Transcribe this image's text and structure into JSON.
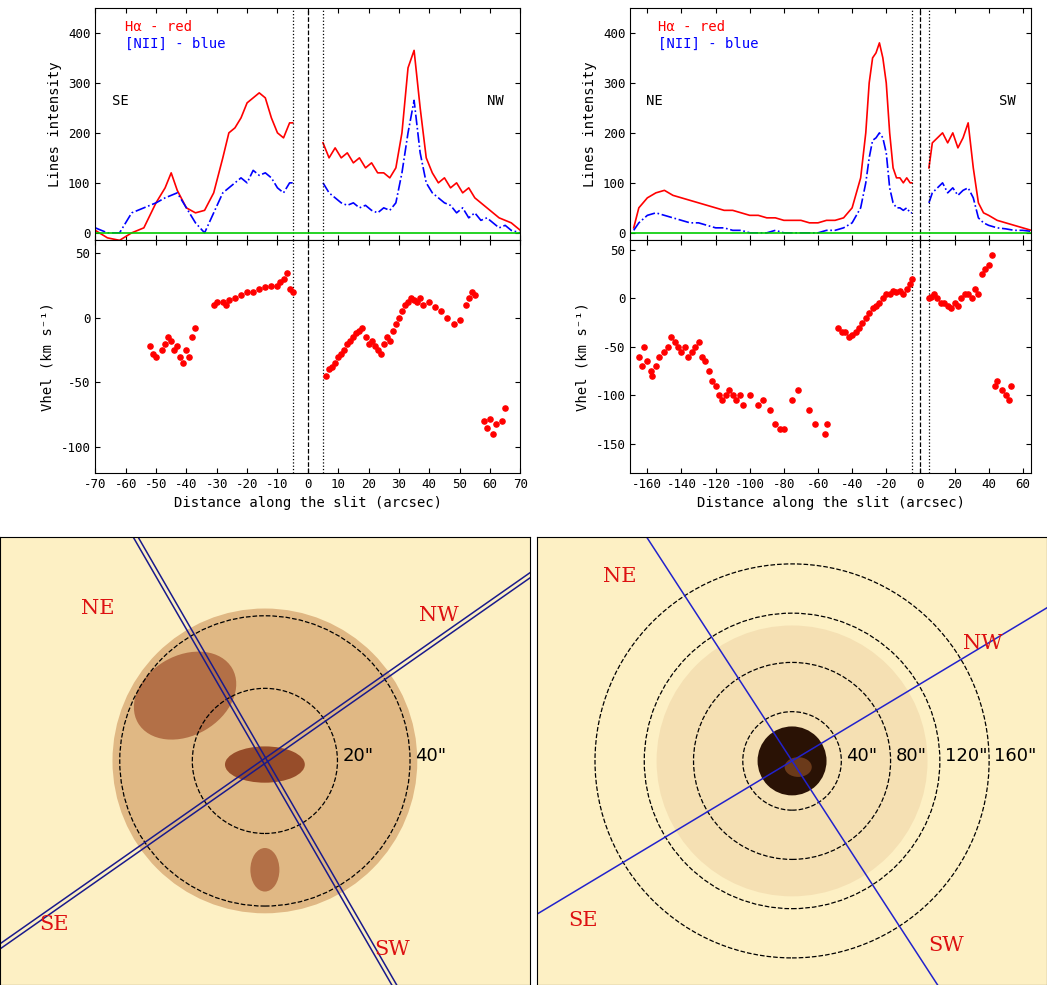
{
  "chart_data": [
    {
      "type": "line",
      "y_label": "Lines intensity",
      "tick_labels": "y",
      "xlim": [
        -70,
        70
      ],
      "ylim": [
        -15,
        450
      ],
      "xticks": [
        -70,
        -60,
        -50,
        -40,
        -30,
        -20,
        -10,
        0,
        10,
        20,
        30,
        40,
        50,
        60,
        70
      ],
      "yticks": [
        0,
        100,
        200,
        300,
        400
      ],
      "annotations": [
        "SE",
        "NW"
      ],
      "vlines": [
        {
          "x": -5,
          "line_style": "dotted"
        },
        {
          "x": 0,
          "line_style": "dashed"
        },
        {
          "x": 5,
          "line_style": "dotted"
        }
      ],
      "hlines": [
        {
          "y": 0,
          "color": "#00cc00"
        }
      ],
      "x": [
        -70,
        -66,
        -62,
        -58,
        -54,
        -50,
        -47,
        -45,
        -43,
        -40,
        -37,
        -34,
        -31,
        -28,
        -26,
        -24,
        -22,
        -20,
        -18,
        -16,
        -14,
        -12,
        -10,
        -8,
        -6,
        -5,
        0,
        5,
        7,
        9,
        11,
        13,
        15,
        17,
        19,
        21,
        23,
        25,
        27,
        29,
        31,
        33,
        35,
        37,
        39,
        41,
        43,
        45,
        47,
        49,
        51,
        53,
        55,
        57,
        59,
        61,
        63,
        65,
        67,
        70
      ],
      "series": [
        {
          "name": "Hα - red",
          "color": "#ff0000",
          "line_style": "solid",
          "values": [
            5,
            -10,
            -15,
            0,
            10,
            60,
            90,
            120,
            85,
            50,
            40,
            45,
            80,
            150,
            200,
            210,
            230,
            260,
            270,
            280,
            270,
            230,
            200,
            190,
            220,
            220,
            null,
            180,
            150,
            170,
            150,
            160,
            140,
            150,
            130,
            140,
            120,
            120,
            110,
            130,
            200,
            330,
            365,
            250,
            150,
            120,
            100,
            110,
            90,
            100,
            80,
            90,
            70,
            60,
            50,
            40,
            30,
            25,
            20,
            5
          ]
        },
        {
          "name": "[NII] - blue",
          "color": "#0000ff",
          "line_style": "dashdot",
          "values": [
            10,
            0,
            0,
            40,
            50,
            60,
            70,
            75,
            80,
            50,
            20,
            0,
            40,
            80,
            90,
            100,
            110,
            100,
            125,
            115,
            120,
            110,
            90,
            80,
            100,
            100,
            null,
            100,
            80,
            70,
            60,
            55,
            60,
            50,
            55,
            45,
            40,
            50,
            45,
            60,
            120,
            200,
            265,
            160,
            100,
            80,
            70,
            60,
            55,
            40,
            50,
            30,
            40,
            25,
            30,
            20,
            10,
            15,
            5,
            0
          ]
        }
      ]
    },
    {
      "type": "scatter",
      "y_label": "Vhel (km s⁻¹)",
      "x_label": "Distance along the slit (arcsec)",
      "xlim": [
        -70,
        70
      ],
      "ylim": [
        -120,
        60
      ],
      "xticks": [
        -70,
        -60,
        -50,
        -40,
        -30,
        -20,
        -10,
        0,
        10,
        20,
        30,
        40,
        50,
        60,
        70
      ],
      "yticks": [
        -100,
        -50,
        0,
        50
      ],
      "vlines": [
        {
          "x": -5,
          "line_style": "dotted"
        },
        {
          "x": 0,
          "line_style": "dashed"
        },
        {
          "x": 5,
          "line_style": "dotted"
        }
      ],
      "x": [
        -52,
        -51,
        -50,
        -48,
        -47,
        -46,
        -45,
        -44,
        -43,
        -42,
        -41,
        -40,
        -39,
        -38,
        -37,
        -31,
        -30,
        -28,
        -27,
        -26,
        -24,
        -22,
        -20,
        -18,
        -16,
        -14,
        -12,
        -10,
        -9,
        -8,
        -7,
        -6,
        -5,
        6,
        7,
        8,
        9,
        10,
        11,
        12,
        13,
        14,
        15,
        16,
        17,
        18,
        19,
        20,
        21,
        22,
        23,
        24,
        25,
        26,
        27,
        28,
        29,
        30,
        31,
        32,
        33,
        34,
        35,
        36,
        37,
        38,
        40,
        42,
        44,
        46,
        48,
        50,
        52,
        53,
        54,
        55,
        58,
        59,
        60,
        61,
        62,
        64,
        65
      ],
      "series": [
        {
          "name": "Vhel",
          "color": "#ff0000",
          "marker": "circle",
          "values": [
            -22,
            -28,
            -30,
            -25,
            -20,
            -15,
            -18,
            -25,
            -22,
            -30,
            -35,
            -25,
            -30,
            -15,
            -8,
            10,
            12,
            12,
            10,
            14,
            15,
            18,
            20,
            20,
            22,
            24,
            25,
            25,
            28,
            30,
            35,
            22,
            20,
            -45,
            -40,
            -38,
            -35,
            -30,
            -28,
            -25,
            -20,
            -18,
            -15,
            -12,
            -10,
            -8,
            -15,
            -20,
            -18,
            -22,
            -25,
            -28,
            -20,
            -15,
            -18,
            -10,
            -5,
            0,
            5,
            10,
            12,
            15,
            14,
            12,
            15,
            10,
            12,
            8,
            5,
            0,
            -5,
            -2,
            10,
            15,
            20,
            18,
            -80,
            -85,
            -78,
            -90,
            -82,
            -80,
            -70
          ]
        }
      ]
    },
    {
      "type": "line",
      "y_label": "Lines intensity",
      "tick_labels": "y",
      "xlim": [
        -170,
        65
      ],
      "ylim": [
        -15,
        450
      ],
      "xticks": [
        -160,
        -140,
        -120,
        -100,
        -80,
        -60,
        -40,
        -20,
        0,
        20,
        40,
        60
      ],
      "yticks": [
        0,
        100,
        200,
        300,
        400
      ],
      "annotations": [
        "NE",
        "SW"
      ],
      "vlines": [
        {
          "x": -5,
          "line_style": "dotted"
        },
        {
          "x": 0,
          "line_style": "dashed"
        },
        {
          "x": 5,
          "line_style": "dotted"
        }
      ],
      "hlines": [
        {
          "y": 0,
          "color": "#00cc00"
        }
      ],
      "x": [
        -168,
        -165,
        -160,
        -155,
        -150,
        -145,
        -140,
        -135,
        -130,
        -125,
        -120,
        -115,
        -110,
        -105,
        -100,
        -95,
        -90,
        -85,
        -80,
        -75,
        -70,
        -65,
        -60,
        -55,
        -50,
        -45,
        -40,
        -35,
        -32,
        -30,
        -28,
        -26,
        -24,
        -22,
        -20,
        -18,
        -16,
        -14,
        -12,
        -10,
        -8,
        -6,
        -5,
        0,
        5,
        7,
        10,
        13,
        16,
        19,
        22,
        25,
        28,
        31,
        34,
        37,
        40,
        45,
        50,
        55,
        60,
        65
      ],
      "series": [
        {
          "name": "Hα - red",
          "color": "#ff0000",
          "line_style": "solid",
          "values": [
            10,
            50,
            70,
            80,
            85,
            75,
            70,
            65,
            60,
            55,
            50,
            45,
            45,
            40,
            35,
            35,
            30,
            30,
            25,
            25,
            25,
            20,
            20,
            25,
            25,
            30,
            50,
            110,
            200,
            300,
            350,
            360,
            380,
            350,
            300,
            200,
            130,
            110,
            110,
            100,
            110,
            100,
            100,
            null,
            130,
            180,
            190,
            200,
            180,
            200,
            170,
            190,
            220,
            130,
            60,
            40,
            35,
            25,
            20,
            15,
            10,
            5
          ]
        },
        {
          "name": "[NII] - blue",
          "color": "#0000ff",
          "line_style": "dashdot",
          "values": [
            5,
            20,
            35,
            40,
            35,
            30,
            25,
            20,
            20,
            15,
            10,
            10,
            5,
            5,
            0,
            0,
            0,
            5,
            0,
            0,
            0,
            0,
            0,
            5,
            5,
            10,
            20,
            50,
            100,
            150,
            185,
            190,
            200,
            190,
            160,
            90,
            60,
            50,
            50,
            45,
            50,
            40,
            40,
            null,
            60,
            80,
            90,
            100,
            80,
            90,
            75,
            85,
            90,
            70,
            30,
            20,
            15,
            10,
            8,
            5,
            5,
            3
          ]
        }
      ]
    },
    {
      "type": "scatter",
      "y_label": "Vhel (km s⁻¹)",
      "x_label": "Distance along the slit (arcsec)",
      "xlim": [
        -170,
        65
      ],
      "ylim": [
        -180,
        60
      ],
      "xticks": [
        -160,
        -140,
        -120,
        -100,
        -80,
        -60,
        -40,
        -20,
        0,
        20,
        40,
        60
      ],
      "yticks": [
        -150,
        -100,
        -50,
        0,
        50
      ],
      "vlines": [
        {
          "x": -5,
          "line_style": "dotted"
        },
        {
          "x": 0,
          "line_style": "dashed"
        },
        {
          "x": 5,
          "line_style": "dotted"
        }
      ],
      "x": [
        -165,
        -163,
        -162,
        -160,
        -158,
        -157,
        -155,
        -153,
        -150,
        -148,
        -146,
        -144,
        -142,
        -140,
        -138,
        -136,
        -134,
        -132,
        -130,
        -128,
        -126,
        -124,
        -122,
        -120,
        -118,
        -116,
        -114,
        -112,
        -110,
        -108,
        -106,
        -104,
        -100,
        -95,
        -92,
        -88,
        -85,
        -82,
        -80,
        -75,
        -72,
        -65,
        -62,
        -56,
        -55,
        -48,
        -46,
        -44,
        -42,
        -40,
        -38,
        -36,
        -34,
        -32,
        -30,
        -28,
        -26,
        -24,
        -22,
        -20,
        -18,
        -16,
        -14,
        -12,
        -10,
        -8,
        -6,
        -5,
        5,
        6,
        8,
        10,
        12,
        14,
        16,
        18,
        20,
        22,
        24,
        26,
        28,
        30,
        32,
        34,
        36,
        38,
        40,
        42,
        44,
        45,
        48,
        50,
        52,
        53
      ],
      "series": [
        {
          "name": "Vhel",
          "color": "#ff0000",
          "marker": "circle",
          "values": [
            -60,
            -70,
            -50,
            -65,
            -75,
            -80,
            -70,
            -60,
            -55,
            -50,
            -40,
            -45,
            -50,
            -55,
            -50,
            -60,
            -55,
            -50,
            -45,
            -60,
            -65,
            -75,
            -85,
            -90,
            -100,
            -105,
            -100,
            -95,
            -100,
            -105,
            -100,
            -110,
            -100,
            -110,
            -105,
            -115,
            -130,
            -135,
            -135,
            -105,
            -95,
            -115,
            -130,
            -140,
            -130,
            -30,
            -35,
            -35,
            -40,
            -38,
            -35,
            -30,
            -25,
            -20,
            -15,
            -10,
            -8,
            -5,
            0,
            5,
            5,
            8,
            7,
            8,
            5,
            10,
            15,
            20,
            0,
            2,
            5,
            0,
            -5,
            -5,
            -8,
            -10,
            -5,
            -8,
            0,
            5,
            5,
            0,
            10,
            5,
            25,
            30,
            35,
            45,
            -90,
            -85,
            -95,
            -100,
            -105,
            -90
          ]
        }
      ]
    }
  ],
  "images": [
    {
      "labels": [
        "NE",
        "NW",
        "SE",
        "SW"
      ],
      "circles": [
        {
          "value": 20,
          "label": "20\""
        },
        {
          "value": 40,
          "label": "40\""
        }
      ]
    },
    {
      "labels": [
        "NE",
        "NW",
        "SE",
        "SW"
      ],
      "circles": [
        {
          "value": 40,
          "label": "40\""
        },
        {
          "value": 80,
          "label": "80\""
        },
        {
          "value": 120,
          "label": "120\""
        },
        {
          "value": 160,
          "label": "160\""
        }
      ]
    }
  ]
}
